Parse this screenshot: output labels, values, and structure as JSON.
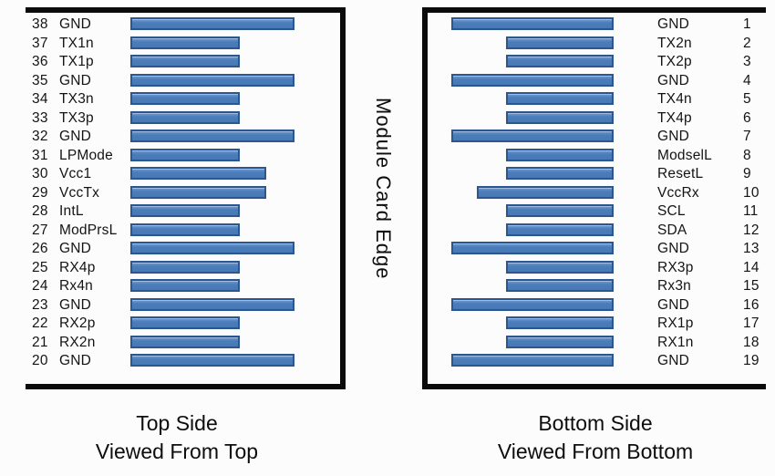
{
  "edge_label": "Module Card Edge",
  "colors": {
    "pad_fill": "#4b7dbb",
    "pad_border": "#2b568e",
    "box_border": "#0b0b0b",
    "text": "#141414",
    "background": "#fcfcfc"
  },
  "pad_types_note": "gnd = long pad, vcc = medium pad, signal = short pad",
  "left_panel": {
    "caption_line1": "Top Side",
    "caption_line2": "Viewed From Top",
    "pins": [
      {
        "num": 38,
        "name": "GND",
        "type": "gnd"
      },
      {
        "num": 37,
        "name": "TX1n",
        "type": "signal"
      },
      {
        "num": 36,
        "name": "TX1p",
        "type": "signal"
      },
      {
        "num": 35,
        "name": "GND",
        "type": "gnd"
      },
      {
        "num": 34,
        "name": "TX3n",
        "type": "signal"
      },
      {
        "num": 33,
        "name": "TX3p",
        "type": "signal"
      },
      {
        "num": 32,
        "name": "GND",
        "type": "gnd"
      },
      {
        "num": 31,
        "name": "LPMode",
        "type": "signal"
      },
      {
        "num": 30,
        "name": "Vcc1",
        "type": "vcc"
      },
      {
        "num": 29,
        "name": "VccTx",
        "type": "vcc"
      },
      {
        "num": 28,
        "name": "IntL",
        "type": "signal"
      },
      {
        "num": 27,
        "name": "ModPrsL",
        "type": "signal"
      },
      {
        "num": 26,
        "name": "GND",
        "type": "gnd"
      },
      {
        "num": 25,
        "name": "RX4p",
        "type": "signal"
      },
      {
        "num": 24,
        "name": "Rx4n",
        "type": "signal"
      },
      {
        "num": 23,
        "name": "GND",
        "type": "gnd"
      },
      {
        "num": 22,
        "name": "RX2p",
        "type": "signal"
      },
      {
        "num": 21,
        "name": "RX2n",
        "type": "signal"
      },
      {
        "num": 20,
        "name": "GND",
        "type": "gnd"
      }
    ]
  },
  "right_panel": {
    "caption_line1": "Bottom Side",
    "caption_line2": "Viewed From Bottom",
    "pins": [
      {
        "num": 1,
        "name": "GND",
        "type": "gnd"
      },
      {
        "num": 2,
        "name": "TX2n",
        "type": "signal"
      },
      {
        "num": 3,
        "name": "TX2p",
        "type": "signal"
      },
      {
        "num": 4,
        "name": "GND",
        "type": "gnd"
      },
      {
        "num": 5,
        "name": "TX4n",
        "type": "signal"
      },
      {
        "num": 6,
        "name": "TX4p",
        "type": "signal"
      },
      {
        "num": 7,
        "name": "GND",
        "type": "gnd"
      },
      {
        "num": 8,
        "name": "ModselL",
        "type": "signal"
      },
      {
        "num": 9,
        "name": "ResetL",
        "type": "signal"
      },
      {
        "num": 10,
        "name": "VccRx",
        "type": "vcc"
      },
      {
        "num": 11,
        "name": "SCL",
        "type": "signal"
      },
      {
        "num": 12,
        "name": "SDA",
        "type": "signal"
      },
      {
        "num": 13,
        "name": "GND",
        "type": "gnd"
      },
      {
        "num": 14,
        "name": "RX3p",
        "type": "signal"
      },
      {
        "num": 15,
        "name": "Rx3n",
        "type": "signal"
      },
      {
        "num": 16,
        "name": "GND",
        "type": "gnd"
      },
      {
        "num": 17,
        "name": "RX1p",
        "type": "signal"
      },
      {
        "num": 18,
        "name": "RX1n",
        "type": "signal"
      },
      {
        "num": 19,
        "name": "GND",
        "type": "gnd"
      }
    ]
  }
}
